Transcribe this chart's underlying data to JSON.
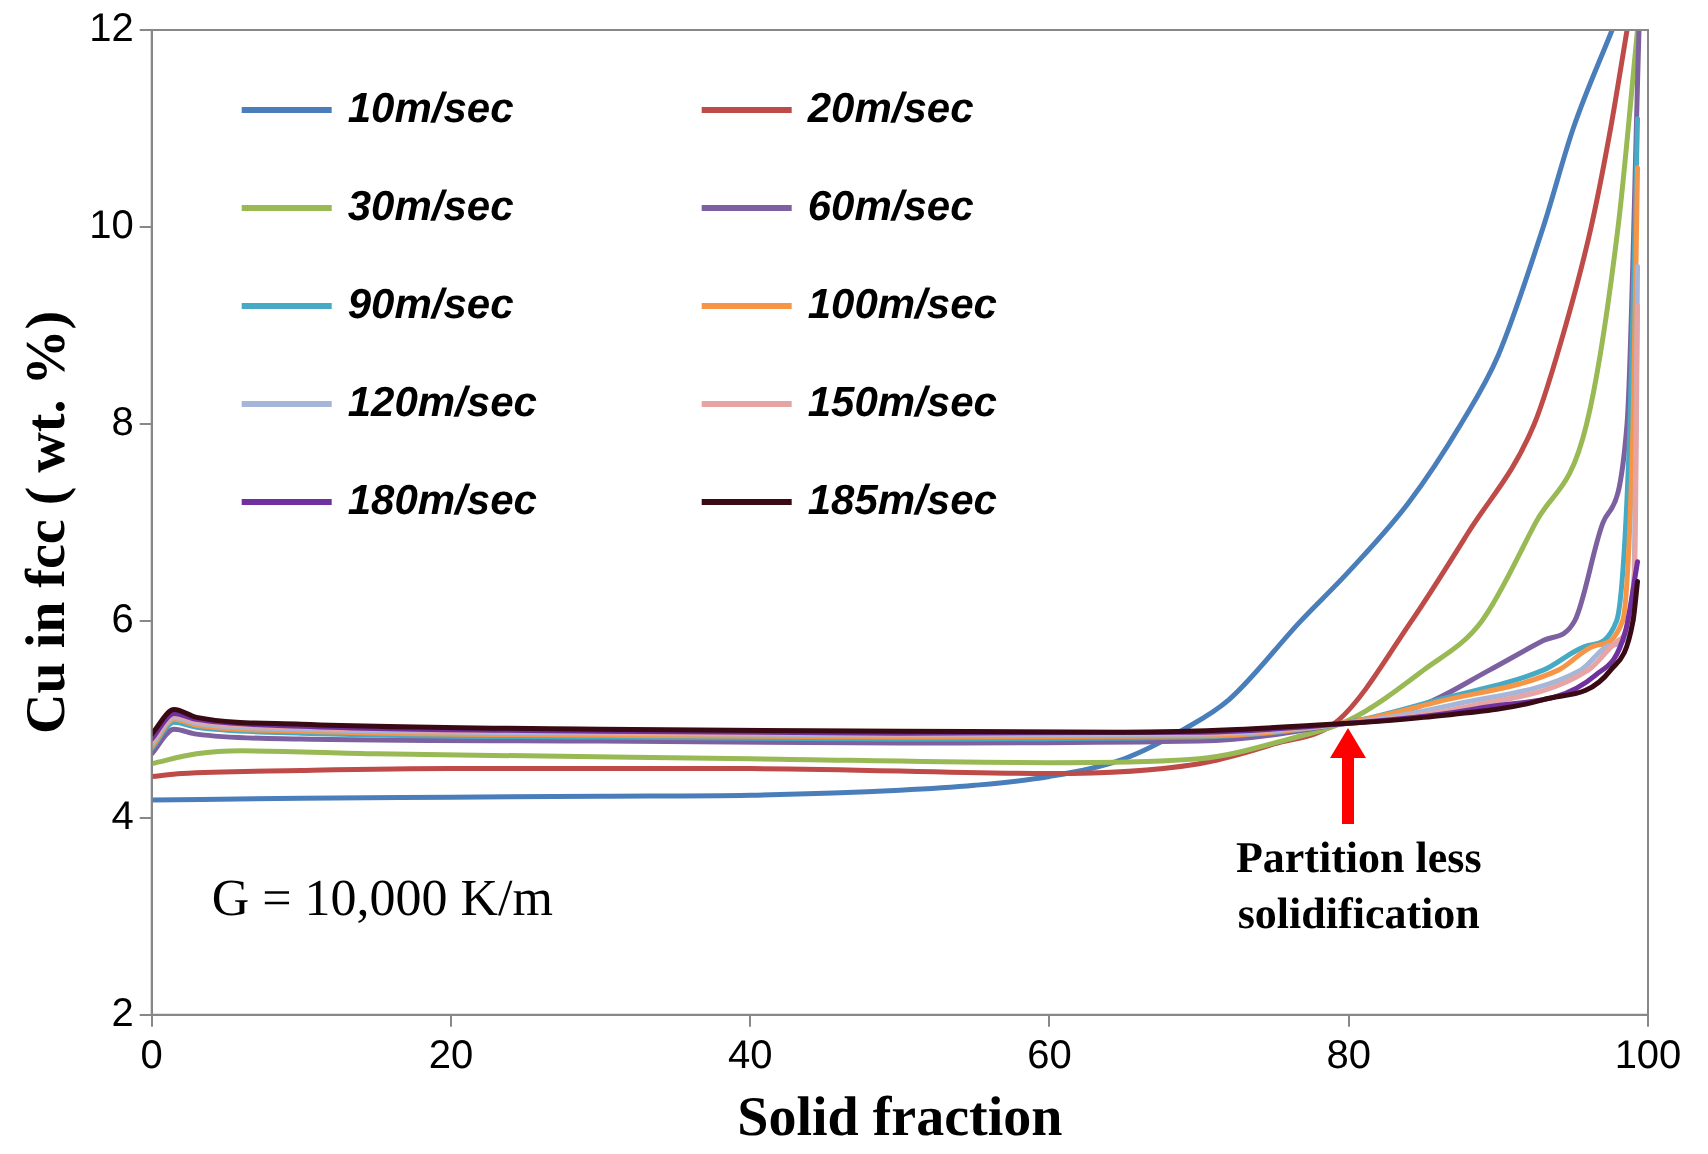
{
  "chart_data": {
    "type": "line",
    "xlabel": "Solid fraction",
    "ylabel": "Cu in fcc ( wt. %)",
    "xlim": [
      0,
      100
    ],
    "xticks": [
      0,
      20,
      40,
      60,
      80,
      100
    ],
    "ylim": [
      2,
      12
    ],
    "yticks": [
      2,
      4,
      6,
      8,
      10,
      12
    ],
    "grid": false,
    "legend": "top left",
    "marker": "none",
    "line_style": "solid",
    "annotations": [
      "G = 10,000 K/m",
      {
        "text": "Partition less solidification",
        "x": 80,
        "y": 4.97
      }
    ],
    "series": [
      {
        "name": "10m/sec",
        "color": "#4a7ebb",
        "x": [
          0,
          10,
          20,
          30,
          40,
          50,
          55,
          60,
          65,
          69,
          72,
          76.8,
          80,
          84,
          87.5,
          90,
          93,
          95,
          97.6
        ],
        "values": [
          4.18,
          4.2,
          4.21,
          4.22,
          4.23,
          4.28,
          4.33,
          4.42,
          4.6,
          4.9,
          5.2,
          6,
          6.5,
          7.2,
          8,
          8.7,
          10,
          11,
          12
        ]
      },
      {
        "name": "20m/sec",
        "color": "#be4b48",
        "x": [
          0,
          2,
          10,
          20,
          40,
          60,
          70,
          75,
          79.3,
          84.2,
          88,
          92.4,
          94.5,
          96.2,
          97.5,
          98.6
        ],
        "values": [
          4.42,
          4.45,
          4.48,
          4.5,
          4.5,
          4.45,
          4.55,
          4.75,
          4.99,
          6,
          6.9,
          8,
          9,
          10,
          11,
          12
        ]
      },
      {
        "name": "30m/sec",
        "color": "#98b954",
        "x": [
          0,
          3,
          6,
          15,
          40,
          60,
          70,
          76,
          80,
          85,
          88.9,
          92.5,
          95.9,
          98,
          99.3
        ],
        "values": [
          4.55,
          4.65,
          4.68,
          4.65,
          4.6,
          4.56,
          4.6,
          4.8,
          4.99,
          5.5,
          6,
          7,
          8,
          10,
          12
        ]
      },
      {
        "name": "60m/sec",
        "color": "#7d60a0",
        "x": [
          0,
          1.5,
          3,
          10,
          30,
          50,
          70,
          80,
          85,
          89.4,
          93,
          95.1,
          97,
          98.6,
          99.4
        ],
        "values": [
          4.65,
          4.9,
          4.85,
          4.8,
          4.78,
          4.76,
          4.78,
          4.97,
          5.15,
          5.5,
          5.8,
          6,
          7,
          8,
          12
        ]
      },
      {
        "name": "90m/sec",
        "color": "#46aac5",
        "x": [
          0,
          1.5,
          3,
          10,
          30,
          50,
          70,
          80,
          86,
          93,
          96,
          97.9,
          98.8,
          99.3
        ],
        "values": [
          4.7,
          4.97,
          4.92,
          4.86,
          4.82,
          4.8,
          4.82,
          4.97,
          5.2,
          5.5,
          5.75,
          6,
          8,
          11.1
        ]
      },
      {
        "name": "100m/sec",
        "color": "#f69545",
        "x": [
          0,
          1.5,
          3,
          10,
          30,
          50,
          70,
          80,
          86,
          94,
          96.5,
          98.3,
          99,
          99.3
        ],
        "values": [
          4.72,
          5.0,
          4.94,
          4.88,
          4.84,
          4.82,
          4.83,
          4.97,
          5.18,
          5.5,
          5.75,
          6,
          8,
          10.6
        ]
      },
      {
        "name": "120m/sec",
        "color": "#a5b6d8",
        "x": [
          0,
          1.5,
          3,
          10,
          30,
          50,
          70,
          80,
          87,
          95.5,
          97.5,
          99,
          99.2,
          99.3
        ],
        "values": [
          4.75,
          5.02,
          4.96,
          4.9,
          4.86,
          4.84,
          4.85,
          4.96,
          5.15,
          5.5,
          5.75,
          6,
          8,
          9.6
        ]
      },
      {
        "name": "150m/sec",
        "color": "#e6a5a4",
        "x": [
          0,
          1.5,
          3,
          10,
          30,
          50,
          70,
          80,
          88,
          96,
          98,
          99.1,
          99.3
        ],
        "values": [
          4.78,
          5.04,
          4.98,
          4.92,
          4.87,
          4.85,
          4.86,
          4.96,
          5.13,
          5.5,
          5.8,
          6.5,
          9.2
        ]
      },
      {
        "name": "180m/sec",
        "color": "#7030a0",
        "x": [
          0,
          1.5,
          3,
          10,
          30,
          50,
          70,
          80,
          89,
          96.5,
          98.5,
          99.3
        ],
        "values": [
          4.8,
          5.06,
          5.0,
          4.93,
          4.88,
          4.86,
          4.87,
          4.96,
          5.12,
          5.45,
          5.9,
          6.6
        ]
      },
      {
        "name": "185m/sec",
        "color": "#3a0a14",
        "x": [
          0,
          1.5,
          3,
          10,
          30,
          50,
          65,
          80,
          85,
          93,
          97.5,
          99,
          99.3
        ],
        "values": [
          4.85,
          5.1,
          5.02,
          4.95,
          4.9,
          4.88,
          4.87,
          4.96,
          5.02,
          5.2,
          5.5,
          6.0,
          6.4
        ]
      }
    ]
  }
}
